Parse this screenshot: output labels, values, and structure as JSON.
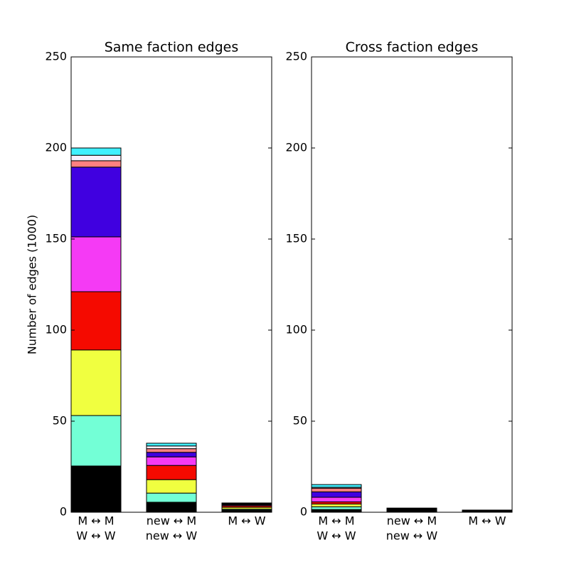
{
  "charts": [
    {
      "type": "bar",
      "title": "Same faction edges",
      "ylabel": "Number of edges (1000)",
      "categories": [
        [
          "M ↔ M",
          "W ↔ W"
        ],
        [
          "new ↔ M",
          "new ↔ W"
        ],
        [
          "M ↔ W"
        ]
      ],
      "ylim": [
        0,
        250
      ],
      "yticks": [
        0,
        50,
        100,
        150,
        200,
        250
      ],
      "stacked": true,
      "series": [
        {
          "color": "#000000",
          "values": [
            25.4,
            5.5,
            1.2
          ]
        },
        {
          "color": "#73ffd6",
          "values": [
            27.7,
            5,
            0.5
          ]
        },
        {
          "color": "#f0ff40",
          "values": [
            36,
            7.4,
            1
          ]
        },
        {
          "color": "#f50a00",
          "values": [
            32,
            7.8,
            0.8
          ]
        },
        {
          "color": "#f53af5",
          "values": [
            30.1,
            4.7,
            0.5
          ]
        },
        {
          "color": "#4000e0",
          "values": [
            38.3,
            2.5,
            0.4
          ]
        },
        {
          "color": "#ff8080",
          "values": [
            3.5,
            2,
            0.3
          ]
        },
        {
          "color": "#f8f0ff",
          "values": [
            3,
            1.5,
            0.2
          ]
        },
        {
          "color": "#40f0ff",
          "values": [
            4,
            1.5,
            0.2
          ]
        }
      ]
    },
    {
      "type": "bar",
      "title": "Cross faction edges",
      "categories": [
        [
          "M ↔ M",
          "W ↔ W"
        ],
        [
          "new ↔ M",
          "new ↔ W"
        ],
        [
          "M ↔ W"
        ]
      ],
      "ylim": [
        0,
        250
      ],
      "yticks": [
        0,
        50,
        100,
        150,
        200,
        250
      ],
      "stacked": true,
      "series": [
        {
          "color": "#000000",
          "values": [
            1.5,
            2.3,
            1.2
          ]
        },
        {
          "color": "#73ffd6",
          "values": [
            1.5,
            0,
            0
          ]
        },
        {
          "color": "#f0ff40",
          "values": [
            1.5,
            0,
            0
          ]
        },
        {
          "color": "#f50a00",
          "values": [
            1.2,
            0,
            0
          ]
        },
        {
          "color": "#f53af5",
          "values": [
            2.5,
            0,
            0
          ]
        },
        {
          "color": "#4000e0",
          "values": [
            3,
            0,
            0
          ]
        },
        {
          "color": "#ff8080",
          "values": [
            2,
            0,
            0
          ]
        },
        {
          "color": "#f8f0ff",
          "values": [
            0.5,
            0,
            0
          ]
        },
        {
          "color": "#40f0ff",
          "values": [
            1.5,
            0,
            0
          ]
        }
      ]
    }
  ]
}
